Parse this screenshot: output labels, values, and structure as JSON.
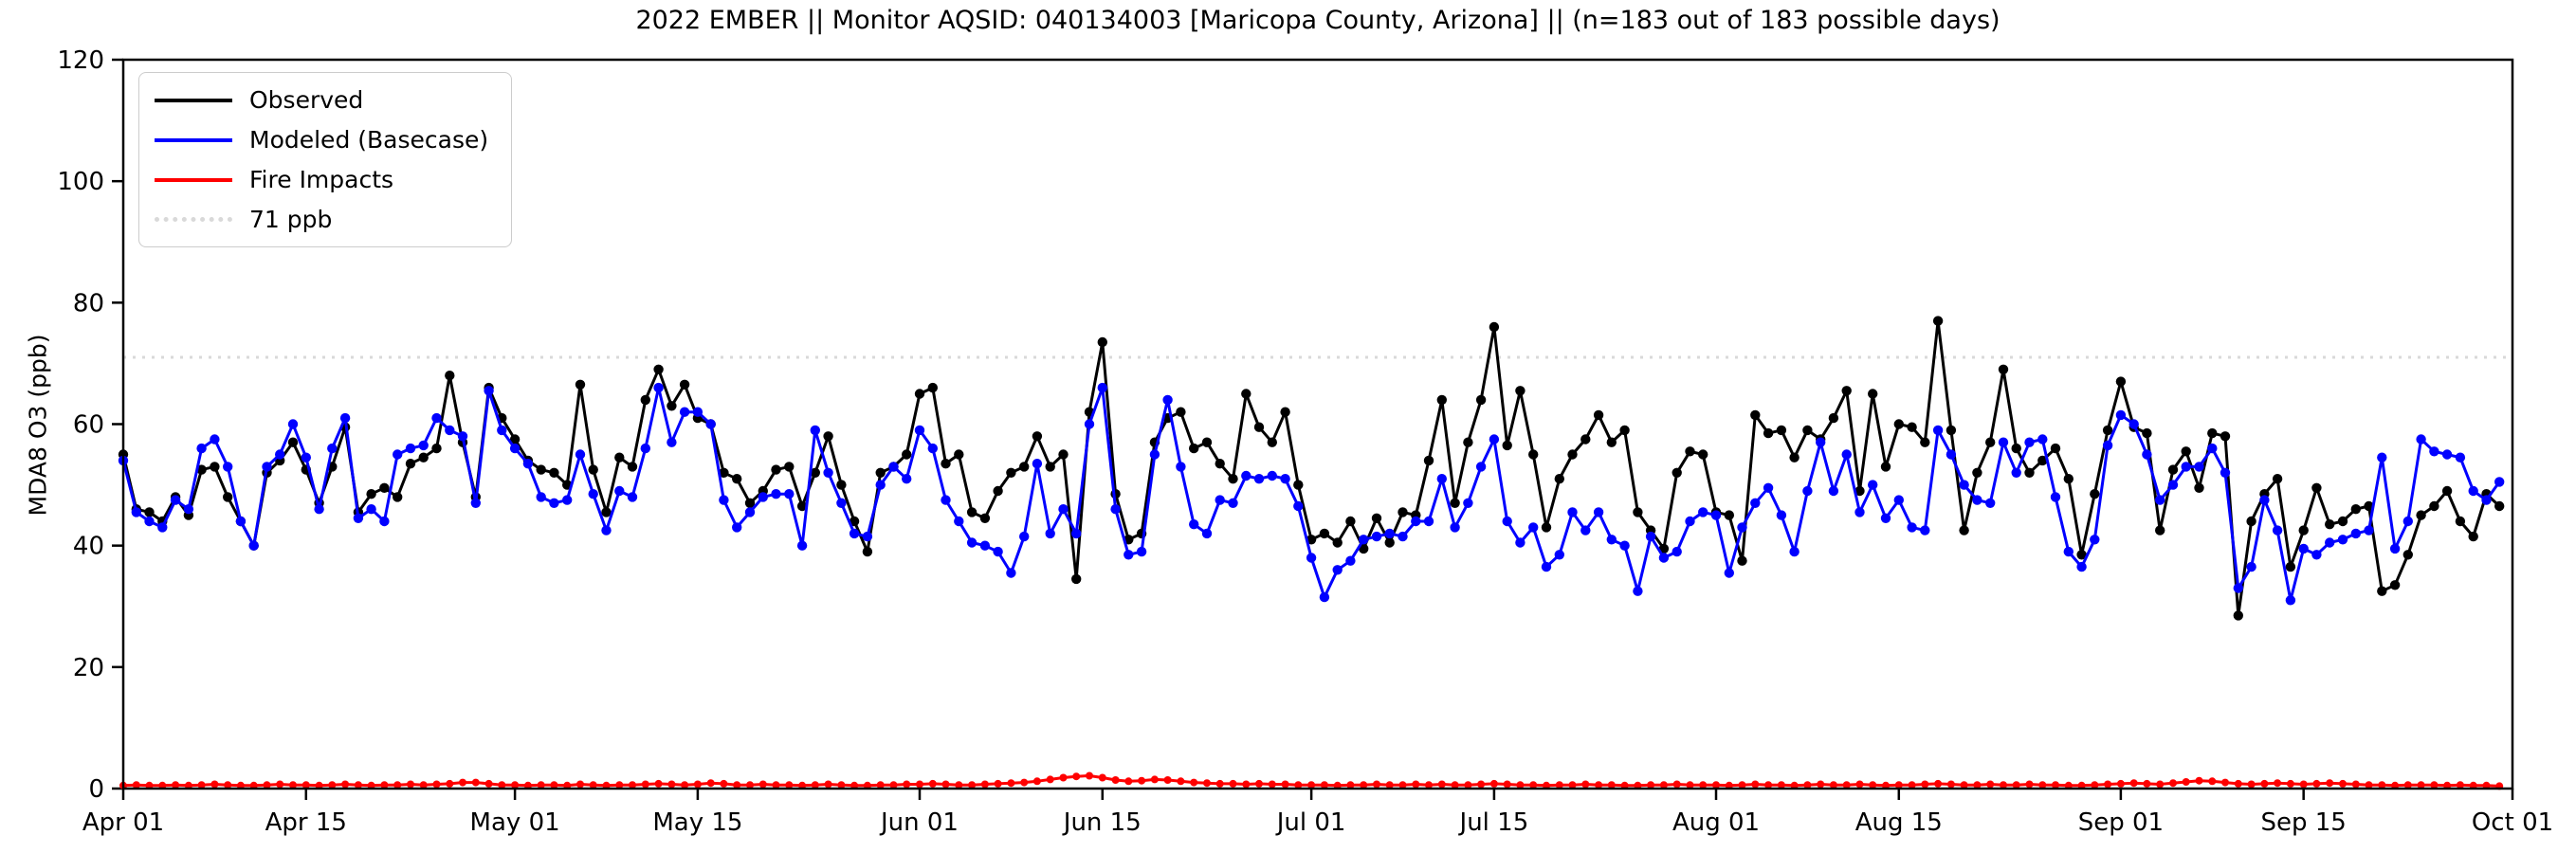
{
  "figure": {
    "title": "2022 EMBER || Monitor AQSID: 040134003 [Maricopa County, Arizona] || (n=183 out of 183 possible days)",
    "background_color": "#ffffff"
  },
  "axes": {
    "ylabel": "MDA8 O3 (ppb)",
    "ylim": [
      0,
      120
    ],
    "y_ticks": [
      0,
      20,
      40,
      60,
      80,
      100,
      120
    ],
    "x_tick_labels": [
      "Apr 01",
      "Apr 15",
      "May 01",
      "May 15",
      "Jun 01",
      "Jun 15",
      "Jul 01",
      "Jul 15",
      "Aug 01",
      "Aug 15",
      "Sep 01",
      "Sep 15",
      "Oct 01"
    ],
    "x_tick_day_index": [
      0,
      14,
      30,
      44,
      61,
      75,
      91,
      105,
      122,
      136,
      153,
      167,
      183
    ],
    "spine_color": "#000000"
  },
  "legend": {
    "items": [
      {
        "label": "Observed",
        "color": "#000000",
        "style": "solid"
      },
      {
        "label": "Modeled (Basecase)",
        "color": "#0000ff",
        "style": "solid"
      },
      {
        "label": "Fire Impacts",
        "color": "#ff0000",
        "style": "solid"
      },
      {
        "label": "71 ppb",
        "color": "#d9d9d9",
        "style": "dotted"
      }
    ],
    "position": "upper left"
  },
  "chart_data": {
    "type": "line",
    "title": "2022 EMBER || Monitor AQSID: 040134003 [Maricopa County, Arizona] || (n=183 out of 183 possible days)",
    "xlabel": "",
    "ylabel": "MDA8 O3 (ppb)",
    "ylim": [
      0,
      120
    ],
    "grid": false,
    "legend_position": "upper left",
    "x_start": "2022-04-01",
    "x_step_days": 1,
    "n_points": 183,
    "threshold_line": {
      "value": 71,
      "label": "71 ppb",
      "color": "#d9d9d9",
      "style": "dotted"
    },
    "series": [
      {
        "name": "Observed",
        "color": "#000000",
        "marker": "circle",
        "values": [
          55,
          46,
          45.5,
          44,
          48,
          45,
          52.5,
          53,
          48,
          44,
          40,
          52,
          54,
          57,
          52.5,
          47,
          53,
          59.5,
          45.5,
          48.5,
          49.5,
          48,
          53.5,
          54.5,
          56,
          68,
          57,
          48,
          66,
          61,
          57.5,
          54,
          52.5,
          52,
          50,
          66.5,
          52.5,
          45.5,
          54.5,
          53,
          64,
          69,
          63,
          66.5,
          61,
          60,
          52,
          51,
          47,
          49,
          52.5,
          53,
          46.5,
          52,
          58,
          50,
          44,
          39,
          52,
          53,
          55,
          65,
          66,
          53.5,
          55,
          45.5,
          44.5,
          49,
          52,
          53,
          58,
          53,
          55,
          34.5,
          62,
          73.5,
          48.5,
          41,
          42,
          57,
          61,
          62,
          56,
          57,
          53.5,
          51,
          65,
          59.5,
          57,
          62,
          50,
          41,
          42,
          40.5,
          44,
          39.5,
          44.5,
          40.5,
          45.5,
          45,
          54,
          64,
          47,
          57,
          64,
          76,
          56.5,
          65.5,
          55,
          43,
          51,
          55,
          57.5,
          61.5,
          57,
          59,
          45.5,
          42.5,
          39.5,
          52,
          55.5,
          55,
          45.5,
          45,
          37.5,
          61.5,
          58.5,
          59,
          54.5,
          59,
          57.5,
          61,
          65.5,
          49,
          65,
          53,
          60,
          59.5,
          57,
          77,
          59,
          42.5,
          52,
          57,
          69,
          56,
          52,
          54,
          56,
          51,
          38.5,
          48.5,
          59,
          67,
          59.5,
          58.5,
          42.5,
          52.5,
          55.5,
          49.5,
          58.5,
          58,
          28.5,
          44,
          48.5,
          51,
          36.5,
          42.5,
          49.5,
          43.5,
          44,
          46,
          46.5,
          32.5,
          33.5,
          38.5,
          45,
          46.5,
          49,
          44,
          41.5,
          48.5,
          46.5
        ]
      },
      {
        "name": "Modeled (Basecase)",
        "color": "#0000ff",
        "marker": "circle",
        "values": [
          54,
          45.5,
          44,
          43,
          47.5,
          46,
          56,
          57.5,
          53,
          44,
          40,
          53,
          55,
          60,
          54.5,
          46,
          56,
          61,
          44.5,
          46,
          44,
          55,
          56,
          56.5,
          61,
          59,
          58,
          47,
          65.5,
          59,
          56,
          53.5,
          48,
          47,
          47.5,
          55,
          48.5,
          42.5,
          49,
          48,
          56,
          66,
          57,
          62,
          62,
          60,
          47.5,
          43,
          45.5,
          48,
          48.5,
          48.5,
          40,
          59,
          52,
          47,
          42,
          41.5,
          50,
          53,
          51,
          59,
          56,
          47.5,
          44,
          40.5,
          40,
          39,
          35.5,
          41.5,
          53.5,
          42,
          46,
          42,
          60,
          66,
          46,
          38.5,
          39,
          55,
          64,
          53,
          43.5,
          42,
          47.5,
          47,
          51.5,
          51,
          51.5,
          51,
          46.5,
          38,
          31.5,
          36,
          37.5,
          41,
          41.5,
          42,
          41.5,
          44,
          44,
          51,
          43,
          47,
          53,
          57.5,
          44,
          40.5,
          43,
          36.5,
          38.5,
          45.5,
          42.5,
          45.5,
          41,
          40,
          32.5,
          41.5,
          38,
          39,
          44,
          45.5,
          45,
          35.5,
          43,
          47,
          49.5,
          45,
          39,
          49,
          57,
          49,
          55,
          45.5,
          50,
          44.5,
          47.5,
          43,
          42.5,
          59,
          55,
          50,
          47.5,
          47,
          57,
          52,
          57,
          57.5,
          48,
          39,
          36.5,
          41,
          56.5,
          61.5,
          60,
          55,
          47.5,
          50,
          53,
          53,
          56,
          52,
          33,
          36.5,
          47.5,
          42.5,
          31,
          39.5,
          38.5,
          40.5,
          41,
          42,
          42.5,
          54.5,
          39.5,
          44,
          57.5,
          55.5,
          55,
          54.5,
          49,
          47.5,
          50.5
        ]
      },
      {
        "name": "Fire Impacts",
        "color": "#ff0000",
        "marker": "circle",
        "values": [
          0.5,
          0.6,
          0.5,
          0.5,
          0.6,
          0.5,
          0.6,
          0.7,
          0.6,
          0.5,
          0.5,
          0.6,
          0.7,
          0.6,
          0.6,
          0.5,
          0.6,
          0.7,
          0.6,
          0.5,
          0.6,
          0.6,
          0.7,
          0.6,
          0.7,
          0.8,
          1.0,
          1.0,
          0.8,
          0.6,
          0.6,
          0.5,
          0.6,
          0.6,
          0.5,
          0.7,
          0.6,
          0.5,
          0.6,
          0.6,
          0.7,
          0.8,
          0.7,
          0.6,
          0.7,
          0.9,
          0.8,
          0.6,
          0.6,
          0.7,
          0.6,
          0.6,
          0.5,
          0.6,
          0.7,
          0.6,
          0.5,
          0.5,
          0.6,
          0.6,
          0.7,
          0.7,
          0.8,
          0.7,
          0.6,
          0.6,
          0.7,
          0.8,
          0.9,
          1.0,
          1.2,
          1.5,
          1.8,
          2.0,
          2.1,
          1.8,
          1.4,
          1.2,
          1.3,
          1.5,
          1.4,
          1.2,
          1.0,
          0.9,
          0.8,
          0.8,
          0.7,
          0.8,
          0.7,
          0.7,
          0.6,
          0.6,
          0.6,
          0.5,
          0.6,
          0.6,
          0.7,
          0.6,
          0.6,
          0.7,
          0.6,
          0.7,
          0.6,
          0.6,
          0.7,
          0.8,
          0.7,
          0.6,
          0.6,
          0.5,
          0.6,
          0.6,
          0.7,
          0.6,
          0.6,
          0.5,
          0.5,
          0.6,
          0.6,
          0.7,
          0.6,
          0.6,
          0.6,
          0.5,
          0.6,
          0.7,
          0.6,
          0.6,
          0.5,
          0.6,
          0.7,
          0.6,
          0.6,
          0.7,
          0.6,
          0.5,
          0.6,
          0.6,
          0.7,
          0.8,
          0.7,
          0.6,
          0.6,
          0.7,
          0.6,
          0.6,
          0.7,
          0.6,
          0.6,
          0.5,
          0.5,
          0.6,
          0.7,
          0.8,
          0.9,
          0.8,
          0.7,
          0.9,
          1.1,
          1.3,
          1.2,
          1.0,
          0.8,
          0.7,
          0.8,
          0.9,
          0.8,
          0.7,
          0.8,
          0.9,
          0.8,
          0.7,
          0.6,
          0.6,
          0.5,
          0.6,
          0.6,
          0.6,
          0.5,
          0.6,
          0.5,
          0.5,
          0.4
        ]
      }
    ]
  }
}
